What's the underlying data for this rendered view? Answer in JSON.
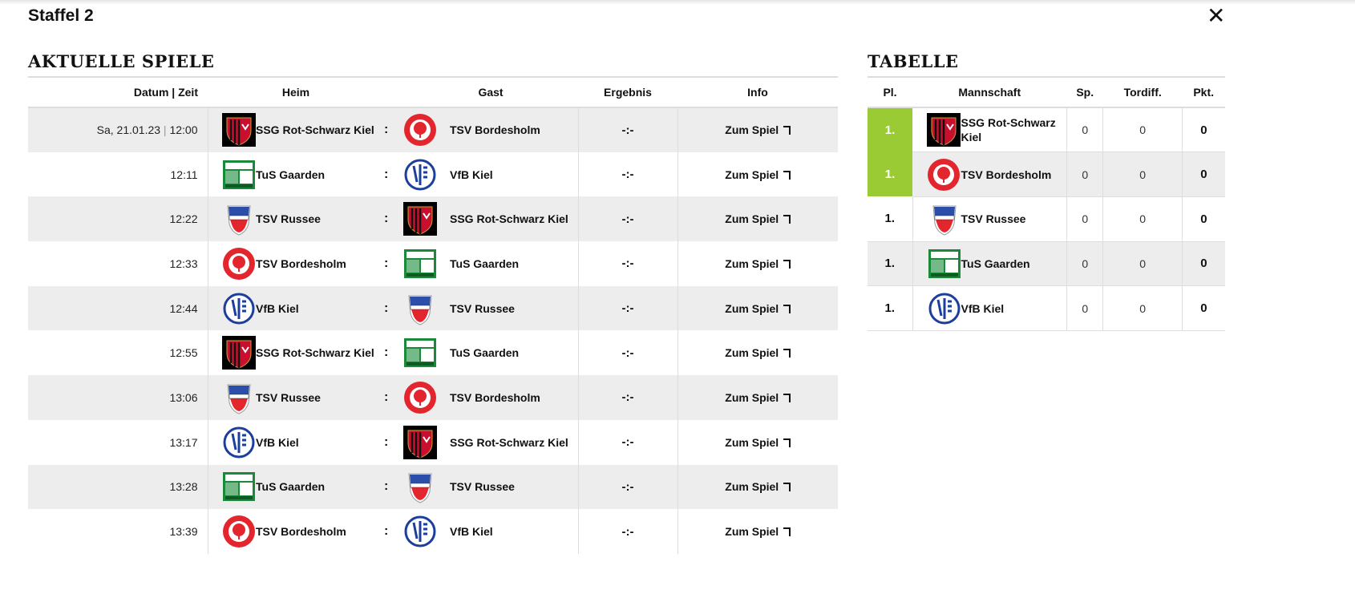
{
  "header": {
    "title": "Staffel 2",
    "close_icon": "close-icon"
  },
  "games": {
    "heading": "AKTUELLE SPIELE",
    "columns": [
      "Datum | Zeit",
      "Heim",
      "Gast",
      "Ergebnis",
      "Info"
    ],
    "rows": [
      {
        "date": "Sa, 21.01.23",
        "time": "12:00",
        "home": "SSG Rot-Schwarz Kiel",
        "home_logo": "ssg",
        "away": "TSV Bordesholm",
        "away_logo": "tsvb",
        "separator": ":",
        "result": "-:-",
        "info": "Zum Spiel"
      },
      {
        "date": "",
        "time": "12:11",
        "home": "TuS Gaarden",
        "home_logo": "tus",
        "away": "VfB Kiel",
        "away_logo": "vfb",
        "separator": ":",
        "result": "-:-",
        "info": "Zum Spiel"
      },
      {
        "date": "",
        "time": "12:22",
        "home": "TSV Russee",
        "home_logo": "russee",
        "away": "SSG Rot-Schwarz Kiel",
        "away_logo": "ssg",
        "separator": ":",
        "result": "-:-",
        "info": "Zum Spiel"
      },
      {
        "date": "",
        "time": "12:33",
        "home": "TSV Bordesholm",
        "home_logo": "tsvb",
        "away": "TuS Gaarden",
        "away_logo": "tus",
        "separator": ":",
        "result": "-:-",
        "info": "Zum Spiel"
      },
      {
        "date": "",
        "time": "12:44",
        "home": "VfB Kiel",
        "home_logo": "vfb",
        "away": "TSV Russee",
        "away_logo": "russee",
        "separator": ":",
        "result": "-:-",
        "info": "Zum Spiel"
      },
      {
        "date": "",
        "time": "12:55",
        "home": "SSG Rot-Schwarz Kiel",
        "home_logo": "ssg",
        "away": "TuS Gaarden",
        "away_logo": "tus",
        "separator": ":",
        "result": "-:-",
        "info": "Zum Spiel"
      },
      {
        "date": "",
        "time": "13:06",
        "home": "TSV Russee",
        "home_logo": "russee",
        "away": "TSV Bordesholm",
        "away_logo": "tsvb",
        "separator": ":",
        "result": "-:-",
        "info": "Zum Spiel"
      },
      {
        "date": "",
        "time": "13:17",
        "home": "VfB Kiel",
        "home_logo": "vfb",
        "away": "SSG Rot-Schwarz Kiel",
        "away_logo": "ssg",
        "separator": ":",
        "result": "-:-",
        "info": "Zum Spiel"
      },
      {
        "date": "",
        "time": "13:28",
        "home": "TuS Gaarden",
        "home_logo": "tus",
        "away": "TSV Russee",
        "away_logo": "russee",
        "separator": ":",
        "result": "-:-",
        "info": "Zum Spiel"
      },
      {
        "date": "",
        "time": "13:39",
        "home": "TSV Bordesholm",
        "home_logo": "tsvb",
        "away": "VfB Kiel",
        "away_logo": "vfb",
        "separator": ":",
        "result": "-:-",
        "info": "Zum Spiel"
      }
    ]
  },
  "standings": {
    "heading": "TABELLE",
    "columns": [
      "Pl.",
      "Mannschaft",
      "Sp.",
      "Tordiff.",
      "Pkt."
    ],
    "highlight_color": "#9acb34",
    "rows": [
      {
        "place": "1.",
        "team": "SSG Rot-Schwarz Kiel",
        "logo": "ssg",
        "played": "0",
        "diff": "0",
        "points": "0",
        "highlight": true
      },
      {
        "place": "1.",
        "team": "TSV Bordesholm",
        "logo": "tsvb",
        "played": "0",
        "diff": "0",
        "points": "0",
        "highlight": true
      },
      {
        "place": "1.",
        "team": "TSV Russee",
        "logo": "russee",
        "played": "0",
        "diff": "0",
        "points": "0",
        "highlight": false
      },
      {
        "place": "1.",
        "team": "TuS Gaarden",
        "logo": "tus",
        "played": "0",
        "diff": "0",
        "points": "0",
        "highlight": false
      },
      {
        "place": "1.",
        "team": "VfB Kiel",
        "logo": "vfb",
        "played": "0",
        "diff": "0",
        "points": "0",
        "highlight": false
      }
    ]
  }
}
